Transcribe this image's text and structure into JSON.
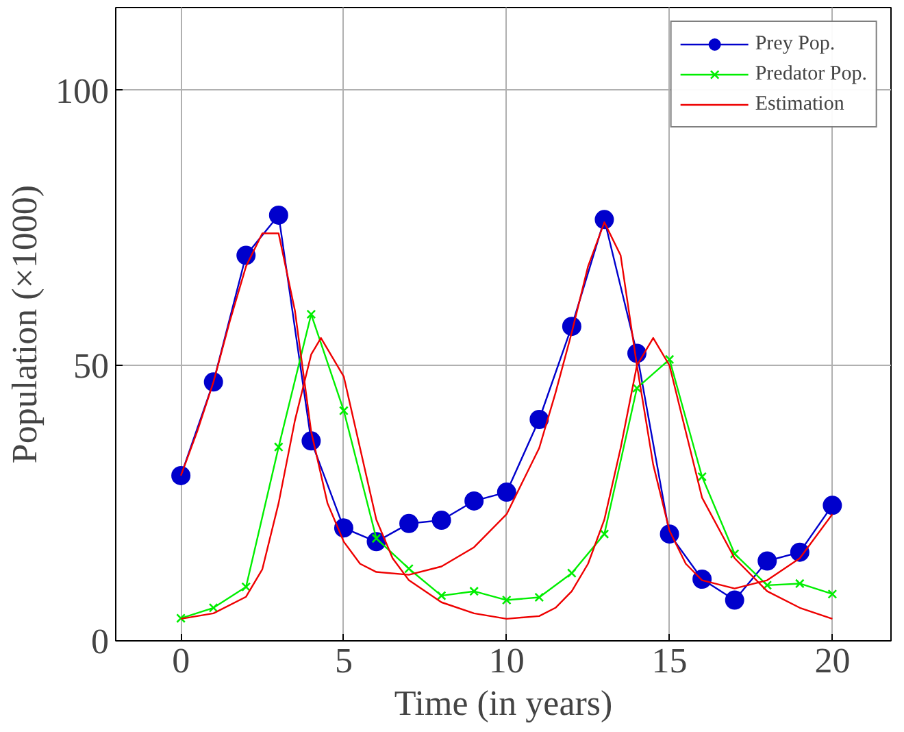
{
  "chart_data": {
    "type": "line",
    "xlabel": "Time (in years)",
    "ylabel": "Population (×1000)",
    "xlim": [
      -2,
      21.8
    ],
    "ylim": [
      0,
      115
    ],
    "xticks": [
      0,
      5,
      10,
      15,
      20
    ],
    "yticks": [
      0,
      50,
      100
    ],
    "grid": true,
    "legend": "top right",
    "series": [
      {
        "name": "Prey Pop.",
        "color": "#0000cc",
        "marker": "circle",
        "x": [
          0,
          1,
          2,
          3,
          4,
          5,
          6,
          7,
          8,
          9,
          10,
          11,
          12,
          13,
          14,
          15,
          16,
          17,
          18,
          19,
          20
        ],
        "values": [
          30,
          47,
          70,
          77.3,
          36.3,
          20.5,
          18,
          21.3,
          21.9,
          25.4,
          27,
          40.2,
          57.1,
          76.5,
          52.2,
          19.4,
          11.2,
          7.4,
          14.5,
          16.1,
          24.6
        ]
      },
      {
        "name": "Predator Pop.",
        "color": "#00ee00",
        "marker": "cross",
        "x": [
          0,
          1,
          2,
          3,
          4,
          5,
          6,
          7,
          8,
          9,
          10,
          11,
          12,
          13,
          14,
          15,
          16,
          17,
          18,
          19,
          20
        ],
        "values": [
          4.1,
          6,
          9.8,
          35.2,
          59.3,
          41.8,
          18.6,
          13.1,
          8.2,
          9,
          7.4,
          7.9,
          12.3,
          19.4,
          45.9,
          51.1,
          29.8,
          15.8,
          10.1,
          10.4,
          8.5
        ]
      },
      {
        "name": "Estimation",
        "color": "#ee0000",
        "marker": "none",
        "x": [
          0,
          0.5,
          1,
          1.5,
          2,
          2.5,
          3,
          3.5,
          4,
          4.5,
          5,
          5.5,
          6,
          7,
          8,
          9,
          10,
          11,
          11.5,
          12,
          12.5,
          13,
          13.5,
          14,
          14.5,
          15,
          15.5,
          16,
          17,
          18,
          19,
          20
        ],
        "values": [
          30,
          38,
          47,
          58,
          68,
          74,
          74,
          60,
          38,
          25,
          18,
          14,
          12.5,
          12,
          13.5,
          17,
          23,
          35,
          45,
          56,
          68,
          76,
          70,
          50,
          32,
          20,
          14,
          11,
          9.5,
          11,
          15,
          23
        ]
      },
      {
        "color": "#ee0000",
        "marker": "none",
        "x": [
          0,
          1,
          2,
          2.5,
          3,
          3.5,
          4,
          4.3,
          5,
          5.5,
          6,
          6.5,
          7,
          8,
          9,
          10,
          11,
          11.5,
          12,
          12.5,
          13,
          13.5,
          14,
          14.5,
          15,
          15.5,
          16,
          17,
          18,
          19,
          20
        ],
        "values": [
          4,
          5,
          8,
          13,
          25,
          40,
          52,
          55,
          48,
          35,
          22,
          15,
          11,
          7,
          5,
          4,
          4.5,
          6,
          9,
          14,
          22,
          35,
          50,
          55,
          50,
          38,
          26,
          15,
          9,
          6,
          4
        ]
      }
    ]
  }
}
